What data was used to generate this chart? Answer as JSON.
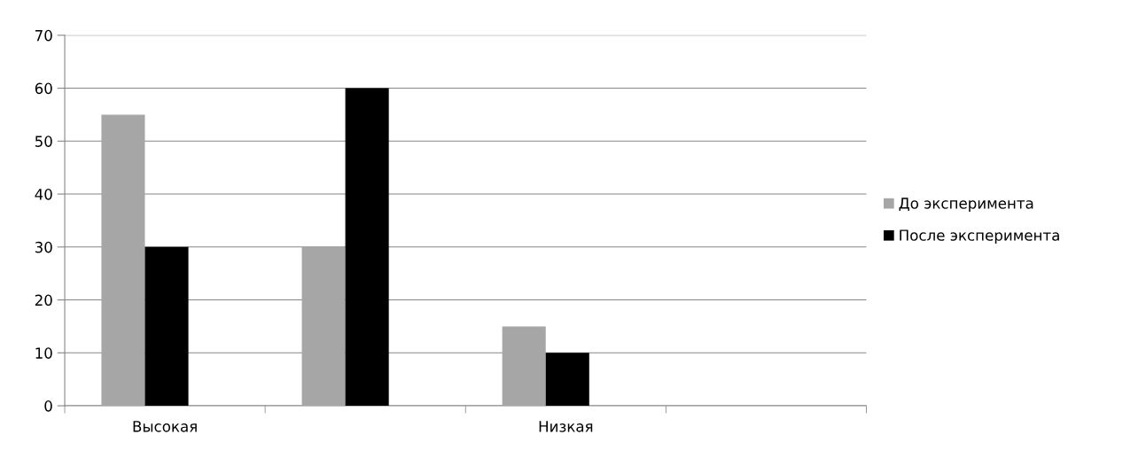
{
  "chart_data": {
    "type": "bar",
    "categories": [
      "Высокая",
      null,
      "Низкая",
      null
    ],
    "series": [
      {
        "name": "До эксперимента",
        "color": "#a6a6a6",
        "values": [
          55,
          30,
          15,
          null
        ]
      },
      {
        "name": "После эксперимента",
        "color": "#000000",
        "values": [
          30,
          60,
          10,
          null
        ]
      }
    ],
    "ylim": [
      0,
      70
    ],
    "yticks": [
      0,
      10,
      20,
      30,
      40,
      50,
      60,
      70
    ],
    "grid": "y",
    "legend": "right"
  }
}
